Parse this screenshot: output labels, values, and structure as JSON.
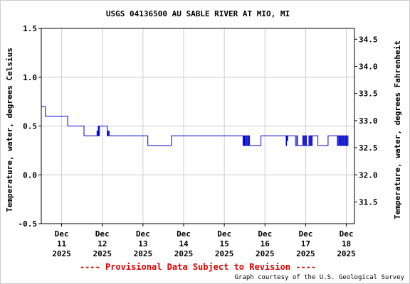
{
  "chart_data": {
    "type": "line",
    "title": "USGS 04136500 AU SABLE RIVER AT MIO, MI",
    "ylabel_left": "Temperature, water, degrees Celsius",
    "ylabel_right": "Temperature, water, degrees Fahrenheit",
    "ylim": [
      -0.5,
      1.5
    ],
    "yticks_left": [
      "1.5",
      "1.0",
      "0.5",
      "0.0",
      "-0.5"
    ],
    "yticks_left_values": [
      1.5,
      1.0,
      0.5,
      0.0,
      -0.5
    ],
    "yticks_right": [
      "34.5",
      "34.0",
      "33.5",
      "33.0",
      "32.5",
      "32.0",
      "31.5"
    ],
    "yticks_right_values": [
      34.5,
      34.0,
      33.5,
      33.0,
      32.5,
      32.0,
      31.5
    ],
    "xlim": [
      10.5,
      18.2
    ],
    "xticks": [
      {
        "x": 11,
        "line1": "Dec",
        "line2": "11",
        "line3": "2025"
      },
      {
        "x": 12,
        "line1": "Dec",
        "line2": "12",
        "line3": "2025"
      },
      {
        "x": 13,
        "line1": "Dec",
        "line2": "13",
        "line3": "2025"
      },
      {
        "x": 14,
        "line1": "Dec",
        "line2": "14",
        "line3": "2025"
      },
      {
        "x": 15,
        "line1": "Dec",
        "line2": "15",
        "line3": "2025"
      },
      {
        "x": 16,
        "line1": "Dec",
        "line2": "16",
        "line3": "2025"
      },
      {
        "x": 17,
        "line1": "Dec",
        "line2": "17",
        "line3": "2025"
      },
      {
        "x": 18,
        "line1": "Dec",
        "line2": "18",
        "line3": "2025"
      }
    ],
    "grid": true,
    "series_color": "#0000cc",
    "series": [
      {
        "x": [
          10.5,
          10.6,
          10.6,
          11.15,
          11.15,
          11.55,
          11.55,
          11.85,
          11.85,
          11.87,
          11.88,
          11.9,
          11.91,
          11.93,
          11.94,
          12.12,
          12.12,
          12.14,
          12.15,
          12.17,
          12.17,
          12.2,
          12.2,
          12.5,
          12.55,
          12.55,
          13.12,
          13.12,
          13.7,
          13.7,
          15.45,
          15.46,
          15.47,
          15.49,
          15.5,
          15.52,
          15.53,
          15.55,
          15.56,
          15.58,
          15.6,
          15.62,
          15.64,
          15.66,
          15.7,
          15.72,
          15.72,
          15.9,
          15.9,
          16.5,
          16.52,
          16.53,
          16.55,
          16.56,
          16.58,
          16.6,
          16.62,
          16.75,
          16.75,
          16.78,
          16.8,
          16.82,
          16.82,
          16.93,
          16.93,
          16.95,
          16.97,
          16.99,
          17.0,
          17.02,
          17.04,
          17.08,
          17.1,
          17.12,
          17.14,
          17.16,
          17.18,
          17.3,
          17.3,
          17.55,
          17.55,
          17.76,
          17.78,
          17.8,
          17.82,
          17.84,
          17.86,
          17.88,
          17.9,
          17.92,
          17.94,
          17.96,
          17.98,
          18.0,
          18.02,
          18.04,
          18.05
        ],
        "y": [
          0.7,
          0.7,
          0.6,
          0.6,
          0.5,
          0.5,
          0.4,
          0.4,
          0.4,
          0.45,
          0.4,
          0.5,
          0.4,
          0.5,
          0.5,
          0.5,
          0.4,
          0.45,
          0.4,
          0.45,
          0.4,
          0.4,
          0.4,
          0.4,
          0.4,
          0.4,
          0.4,
          0.3,
          0.3,
          0.4,
          0.4,
          0.3,
          0.4,
          0.3,
          0.4,
          0.3,
          0.4,
          0.3,
          0.4,
          0.3,
          0.4,
          0.3,
          0.3,
          0.3,
          0.3,
          0.3,
          0.3,
          0.3,
          0.4,
          0.4,
          0.3,
          0.4,
          0.35,
          0.4,
          0.4,
          0.4,
          0.4,
          0.4,
          0.3,
          0.4,
          0.3,
          0.3,
          0.3,
          0.3,
          0.4,
          0.3,
          0.4,
          0.3,
          0.4,
          0.3,
          0.3,
          0.4,
          0.3,
          0.4,
          0.3,
          0.4,
          0.4,
          0.4,
          0.3,
          0.3,
          0.4,
          0.4,
          0.3,
          0.4,
          0.3,
          0.4,
          0.3,
          0.4,
          0.3,
          0.4,
          0.3,
          0.4,
          0.3,
          0.4,
          0.3,
          0.4,
          0.4
        ]
      }
    ]
  },
  "footer": {
    "provisional": "---- Provisional Data Subject to Revision ----",
    "credit": "Graph courtesy of the U.S. Geological Survey"
  }
}
